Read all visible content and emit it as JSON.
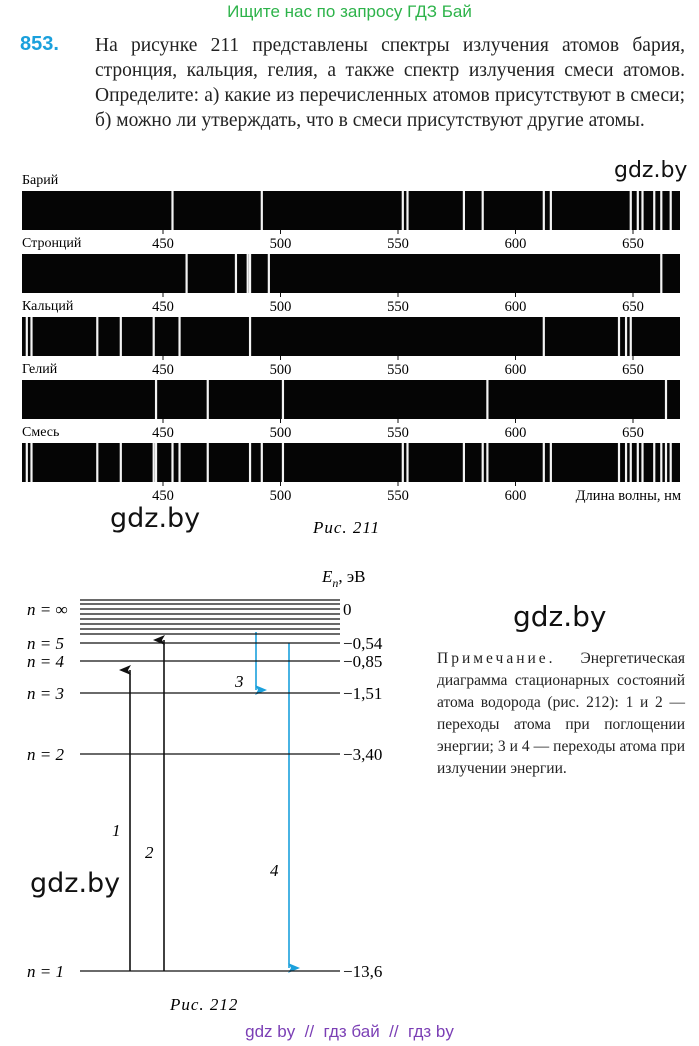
{
  "header": "Ищите нас по запросу ГДЗ Бай",
  "problem": {
    "number": "853.",
    "text": "На рисунке 211 представлены спектры излучения атомов бария, стронция, кальция, гелия, а также спектр излучения смеси атомов. Определите: а) какие из перечисленных атомов присутствуют в смеси; б) можно ли утверждать, что в смеси присутствуют другие атомы."
  },
  "figure_211": {
    "spectra": [
      {
        "name": "Барий",
        "lines": [
          454,
          492,
          552,
          554,
          578,
          586,
          612,
          615,
          649,
          652,
          654,
          659,
          662,
          666
        ]
      },
      {
        "name": "Стронций",
        "lines": [
          460,
          481,
          486,
          487,
          495,
          662
        ]
      },
      {
        "name": "Кальций",
        "lines": [
          392,
          394,
          422,
          432,
          446,
          457,
          487,
          612,
          644,
          647,
          649
        ]
      },
      {
        "name": "Гелий",
        "lines": [
          447,
          469,
          501,
          588,
          664
        ]
      },
      {
        "name": "Смесь",
        "lines": [
          392,
          394,
          422,
          432,
          446,
          447,
          454,
          457,
          469,
          487,
          492,
          501,
          552,
          554,
          578,
          586,
          588,
          612,
          615,
          644,
          647,
          649,
          652,
          654,
          659,
          662,
          664,
          666
        ]
      }
    ],
    "axis_ticks": [
      450,
      500,
      550,
      600,
      650
    ],
    "axis_title": "Длина волны, нм",
    "caption": "Рис. 211"
  },
  "figure_212": {
    "axis_symbol": "E",
    "axis_subscript": "n",
    "axis_unit": ", эВ",
    "levels": [
      {
        "n": "n = ∞",
        "energy": "0"
      },
      {
        "n": "n = 5",
        "energy": "−0,54"
      },
      {
        "n": "n = 4",
        "energy": "−0,85"
      },
      {
        "n": "n = 3",
        "energy": "−1,51"
      },
      {
        "n": "n = 2",
        "energy": "−3,40"
      },
      {
        "n": "n = 1",
        "energy": "−13,6"
      }
    ],
    "transitions": [
      "1",
      "2",
      "3",
      "4"
    ],
    "caption": "Рис. 212"
  },
  "note": {
    "label": "Примечание.",
    "text": "Энергетическая диаграмма стационарных состояний атома водорода (рис. 212): 1 и 2 — переходы атома при поглощении энергии; 3 и 4 — переходы атома при излучении энергии."
  },
  "watermarks": [
    "gdz.by",
    "gdz.by",
    "gdz.by",
    "gdz.by"
  ],
  "footer": "gdz by  //  гдз бай  //  гдз by"
}
